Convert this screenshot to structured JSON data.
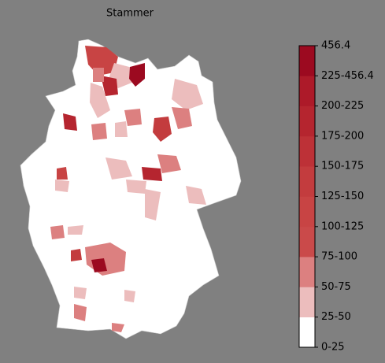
{
  "title": "Stammer",
  "colorbar": {
    "labels": [
      "0-25",
      "25-50",
      "50-75",
      "75-100",
      "100-125",
      "125-150",
      "150-175",
      "175-200",
      "200-225",
      "225-456.4",
      "456.4"
    ],
    "colors": [
      "#ffffff",
      "#ecbdbd",
      "#dc8080",
      "#ca4a4a",
      "#c84444",
      "#c33c3e",
      "#bd3137",
      "#b5252f",
      "#ad1a29",
      "#9c0a20"
    ]
  }
}
